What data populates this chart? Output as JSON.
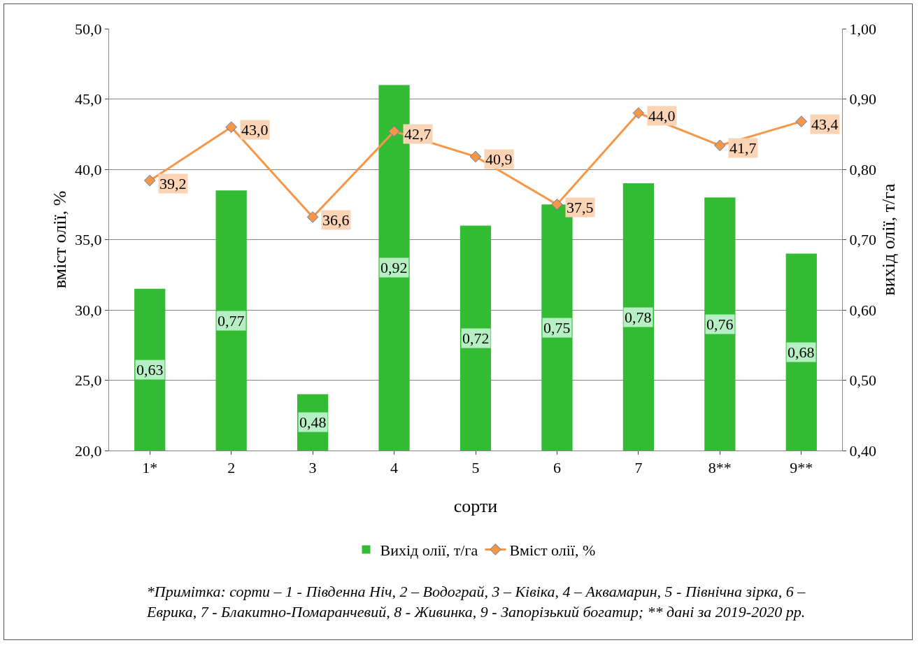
{
  "chart_data": {
    "type": "bar",
    "xlabel": "сорти",
    "ylabel": "вміст олії, %",
    "y2label": "вихід олії, т/га",
    "categories": [
      "1*",
      "2",
      "3",
      "4",
      "5",
      "6",
      "7",
      "8**",
      "9**"
    ],
    "series": [
      {
        "name": "Вихід олії, т/га",
        "axis": "y2",
        "color": "#33bb33",
        "values": [
          0.63,
          0.77,
          0.48,
          0.92,
          0.72,
          0.75,
          0.78,
          0.76,
          0.68
        ],
        "value_labels": [
          "0,63",
          "0,77",
          "0,48",
          "0,92",
          "0,72",
          "0,75",
          "0,78",
          "0,76",
          "0,68"
        ]
      },
      {
        "name": "Вміст олії, %",
        "type": "line",
        "axis": "y",
        "color": "#f79646",
        "values": [
          39.2,
          43.0,
          36.6,
          42.7,
          40.9,
          37.5,
          44.0,
          41.7,
          43.4
        ],
        "value_labels": [
          "39,2",
          "43,0",
          "36,6",
          "42,7",
          "40,9",
          "37,5",
          "44,0",
          "41,7",
          "43,4"
        ]
      }
    ],
    "ylim": [
      20,
      50
    ],
    "yticks": [
      {
        "value": 20,
        "label": "20,0"
      },
      {
        "value": 25,
        "label": "25,0"
      },
      {
        "value": 30,
        "label": "30,0"
      },
      {
        "value": 35,
        "label": "35,0"
      },
      {
        "value": 40,
        "label": "40,0"
      },
      {
        "value": 45,
        "label": "45,0"
      },
      {
        "value": 50,
        "label": "50,0"
      }
    ],
    "y2lim": [
      0.4,
      1.0
    ],
    "y2ticks": [
      {
        "value": 0.4,
        "label": "0,40"
      },
      {
        "value": 0.5,
        "label": "0,50"
      },
      {
        "value": 0.6,
        "label": "0,60"
      },
      {
        "value": 0.7,
        "label": "0,70"
      },
      {
        "value": 0.8,
        "label": "0,80"
      },
      {
        "value": 0.9,
        "label": "0,90"
      },
      {
        "value": 1.0,
        "label": "1,00"
      }
    ],
    "grid": "y",
    "legend": "bottom",
    "marker": "diamond",
    "line_style": "solid",
    "annotations": [
      "*Примітка: сорти – 1 - Південна Ніч, 2 – Водограй, 3 – Ківіка, 4 – Аквамарин, 5 - Північна зірка, 6 – Еврика, 7 - Блакитно-Помаранчевий, 8 - Живинка, 9 - Запорізький богатир; ** дані за 2019-2020 рр."
    ]
  }
}
